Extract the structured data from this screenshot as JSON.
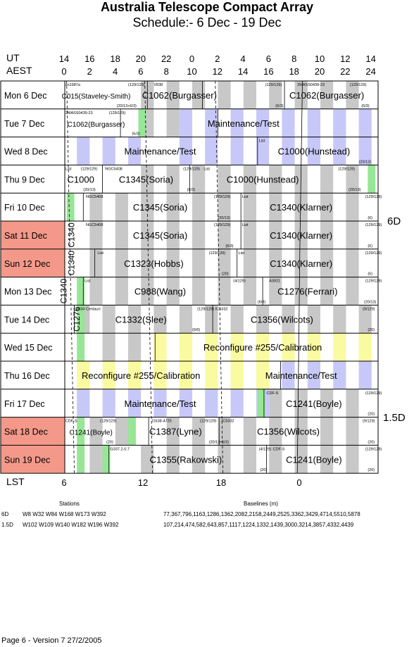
{
  "title": "Australia Telescope Compact Array",
  "subtitle": "Schedule:- 6  Dec - 19 Dec",
  "ut_label": "UT",
  "aest_label": "AEST",
  "lst_label": "LST",
  "ut_ticks": [
    "14",
    "16",
    "18",
    "20",
    "22",
    "0",
    "2",
    "4",
    "6",
    "8",
    "10",
    "12",
    "14"
  ],
  "aest_ticks": [
    "0",
    "2",
    "4",
    "6",
    "8",
    "10",
    "12",
    "14",
    "16",
    "18",
    "20",
    "22",
    "24"
  ],
  "lst_ticks": [
    "6",
    "12",
    "18",
    "0"
  ],
  "colors": {
    "weekend": "#f4998a",
    "grey": "#c8c8c8",
    "lavender": "#c8c8f8",
    "yellow": "#fafaa0",
    "green": "#96e696"
  },
  "days": [
    {
      "label": "Mon  6  Dec",
      "weekend": false
    },
    {
      "label": "Tue  7  Dec",
      "weekend": false
    },
    {
      "label": "Wed  8  Dec",
      "weekend": false
    },
    {
      "label": "Thu  9  Dec",
      "weekend": false
    },
    {
      "label": "Fri  10  Dec",
      "weekend": false
    },
    {
      "label": "Sat  11 Dec",
      "weekend": true
    },
    {
      "label": "Sun  12 Dec",
      "weekend": true
    },
    {
      "label": "Mon  13 Dec",
      "weekend": false
    },
    {
      "label": "Tue  14 Dec",
      "weekend": false
    },
    {
      "label": "Wed  15 Dec",
      "weekend": false
    },
    {
      "label": "Thu  16 Dec",
      "weekend": false
    },
    {
      "label": "Fri  17 Dec",
      "weekend": false
    },
    {
      "label": "Sat  18 Dec",
      "weekend": true
    },
    {
      "label": "Sun  19 Dec",
      "weekend": true
    }
  ],
  "configs": [
    "6D",
    "1.5D"
  ],
  "projects": [
    "C015(Staveley-Smith)",
    "C1062(Burgasser)",
    "C1062(Burgasser)",
    "C1062(Burgasser)",
    "Maintenance/Test",
    "Maintenance/Test",
    "C1000(Hunstead)",
    "C1000",
    "C1345(Soria)",
    "C1000(Hunstead)",
    "C1345(Soria)",
    "C1340(Klarner)",
    "C1345(Soria)",
    "C1340(Klarner)",
    "C1323(Hobbs)",
    "C1340(Klarner)",
    "C988(Wang)",
    "C1276(Ferrari)",
    "C1332(Slee)",
    "C1356(Wilcots)",
    "Reconfigure #255/Calibration",
    "Reconfigure #255/Calibration",
    "Maintenance/Test",
    "Maintenance/Test",
    "C1241(Boyle)",
    "C1241(Boyle)",
    "C1387(Lyne)",
    "C1356(Wilcots)",
    "C1355(Rakowski)",
    "C1241(Boyle)"
  ],
  "vertical_projects": [
    "C1340",
    "C1340",
    "C1340",
    "C1276"
  ],
  "small_labels": [
    "sn1987a",
    "(129/129)",
    "V838",
    "(129/129)",
    "2MASS0439-23",
    "(129/129)",
    "(20/13+6/3)",
    "(6/3)",
    "(6/3)",
    "2MASS0439-23",
    "(129/129)",
    "(6/3)",
    "List",
    "(20/13)",
    "List",
    "(129/129)",
    "NGC5408",
    "(129/129)",
    "List",
    "(129/129)",
    "(20/13)",
    "(6/3)",
    "(20/13)",
    "NGC5408",
    "(129/129)",
    "List",
    "(129/129)",
    "(20/13)",
    "(6)",
    "NGC5408",
    "(129/129)",
    "List",
    "(129/129)",
    "(6/3)",
    "(6)",
    "List",
    "(129/129)",
    "List",
    "(129/129)",
    "(20)",
    "(6)",
    "List",
    "(4/129)",
    "A3921",
    "(129/129)",
    "(6/3)",
    "(20/13)",
    "V834 Centauri",
    "(129/129)",
    "IC5332",
    "(9/129)",
    "(6/6)",
    "(20)",
    "CDF-S",
    "(129/129)",
    "(20)",
    "CDF-S",
    "(129/129)",
    "J1638-4725",
    "(129/129)",
    "IC5332",
    "(9/129)",
    "(20)",
    "(20/13+6/3)",
    "(20)",
    "G337.2-0.7",
    "(4/129)",
    "CDF-S",
    "(129/129)",
    "(20)",
    "(20)"
  ],
  "stations_header": "Stations",
  "baselines_header": "Baselines (m)",
  "station_rows": [
    {
      "config": "6D",
      "stations": "W8 W32 W84 W168 W173 W392",
      "baselines": "77,367,796,1163,1286,1362,2082,2158,2449,2525,3362,3429,4714,5510,5878"
    },
    {
      "config": "1.5D",
      "stations": "W102 W109 W140 W182 W196 W392",
      "baselines": "107,214,474,582,643,857,1117,1224,1332,1439,3000,3214,3857,4332,4439"
    }
  ],
  "footer": "Page 6 - Version 7  27/2/2005"
}
